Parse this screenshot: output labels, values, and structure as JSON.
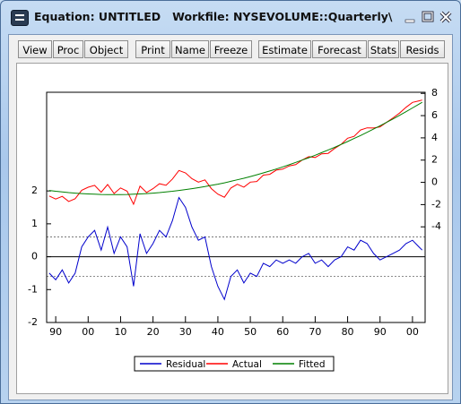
{
  "window": {
    "title": "Equation: UNTITLED   Workfile: NYSEVOLUME::Quarterly\\"
  },
  "toolbar": [
    "View",
    "Proc",
    "Object",
    "Print",
    "Name",
    "Freeze",
    "Estimate",
    "Forecast",
    "Stats",
    "Resids"
  ],
  "chart_data": {
    "type": "line",
    "x": [
      1888,
      1890,
      1892,
      1894,
      1896,
      1898,
      1900,
      1902,
      1904,
      1906,
      1908,
      1910,
      1912,
      1914,
      1916,
      1918,
      1920,
      1922,
      1924,
      1926,
      1928,
      1930,
      1932,
      1934,
      1936,
      1938,
      1940,
      1942,
      1944,
      1946,
      1948,
      1950,
      1952,
      1954,
      1956,
      1958,
      1960,
      1962,
      1964,
      1966,
      1968,
      1970,
      1972,
      1974,
      1976,
      1978,
      1980,
      1982,
      1984,
      1986,
      1988,
      1990,
      1992,
      1994,
      1996,
      1998,
      2000,
      2002,
      2003
    ],
    "series": [
      {
        "name": "Residual",
        "color": "#0000cc",
        "axis": "y",
        "values": [
          -0.5,
          -0.7,
          -0.4,
          -0.8,
          -0.5,
          0.3,
          0.6,
          0.8,
          0.2,
          0.9,
          0.1,
          0.6,
          0.3,
          -0.9,
          0.7,
          0.1,
          0.4,
          0.8,
          0.6,
          1.1,
          1.8,
          1.5,
          0.9,
          0.5,
          0.6,
          -0.3,
          -0.9,
          -1.3,
          -0.6,
          -0.4,
          -0.8,
          -0.5,
          -0.6,
          -0.2,
          -0.3,
          -0.1,
          -0.2,
          -0.1,
          -0.2,
          0.0,
          0.1,
          -0.2,
          -0.1,
          -0.3,
          -0.1,
          0.0,
          0.3,
          0.2,
          0.5,
          0.4,
          0.1,
          -0.1,
          0.0,
          0.1,
          0.2,
          0.4,
          0.5,
          0.3,
          0.2
        ]
      },
      {
        "name": "Actual",
        "color": "#ff0000",
        "axis": "y2",
        "values": [
          -1.23,
          -1.5,
          -1.26,
          -1.72,
          -1.47,
          -0.71,
          -0.44,
          -0.27,
          -0.89,
          -0.2,
          -1.0,
          -0.5,
          -0.79,
          -1.97,
          -0.34,
          -0.91,
          -0.57,
          -0.12,
          -0.26,
          0.3,
          1.07,
          0.85,
          0.33,
          0.02,
          0.22,
          -0.57,
          -1.06,
          -1.34,
          -0.51,
          -0.17,
          -0.43,
          0.02,
          0.08,
          0.65,
          0.72,
          1.1,
          1.19,
          1.48,
          1.59,
          2.0,
          2.31,
          2.24,
          2.57,
          2.61,
          3.05,
          3.41,
          3.97,
          4.14,
          4.71,
          4.9,
          4.89,
          4.99,
          5.39,
          5.8,
          6.22,
          6.75,
          7.19,
          7.33,
          7.4
        ]
      },
      {
        "name": "Fitted",
        "color": "#008000",
        "axis": "y2",
        "values": [
          -0.73,
          -0.8,
          -0.86,
          -0.92,
          -0.97,
          -1.01,
          -1.04,
          -1.07,
          -1.09,
          -1.1,
          -1.1,
          -1.1,
          -1.09,
          -1.07,
          -1.04,
          -1.01,
          -0.97,
          -0.92,
          -0.86,
          -0.8,
          -0.73,
          -0.65,
          -0.57,
          -0.48,
          -0.38,
          -0.27,
          -0.16,
          -0.04,
          0.09,
          0.23,
          0.37,
          0.52,
          0.68,
          0.85,
          1.02,
          1.2,
          1.39,
          1.58,
          1.79,
          2.0,
          2.21,
          2.44,
          2.67,
          2.91,
          3.15,
          3.41,
          3.67,
          3.94,
          4.21,
          4.5,
          4.79,
          5.09,
          5.39,
          5.7,
          6.02,
          6.35,
          6.69,
          7.03,
          7.2
        ]
      }
    ],
    "xlim": [
      1887.2,
      2003.9
    ],
    "xticks": [
      {
        "value": 1890,
        "label": "90"
      },
      {
        "value": 1900,
        "label": "00"
      },
      {
        "value": 1910,
        "label": "10"
      },
      {
        "value": 1920,
        "label": "20"
      },
      {
        "value": 1930,
        "label": "30"
      },
      {
        "value": 1940,
        "label": "40"
      },
      {
        "value": 1950,
        "label": "50"
      },
      {
        "value": 1960,
        "label": "60"
      },
      {
        "value": 1970,
        "label": "70"
      },
      {
        "value": 1980,
        "label": "80"
      },
      {
        "value": 1990,
        "label": "90"
      },
      {
        "value": 2000,
        "label": "00"
      }
    ],
    "ylim": [
      -2,
      5
    ],
    "yticks": [
      -2,
      -1,
      0,
      1,
      2
    ],
    "y2lim": [
      -12.6,
      8.1
    ],
    "y2ticks": [
      -4,
      -2,
      0,
      2,
      4,
      6,
      8
    ],
    "hlines": [
      {
        "value": 0,
        "style": "solid"
      },
      {
        "value": 0.6,
        "style": "dotted"
      },
      {
        "value": -0.6,
        "style": "dotted"
      }
    ],
    "legend": "bottom"
  }
}
